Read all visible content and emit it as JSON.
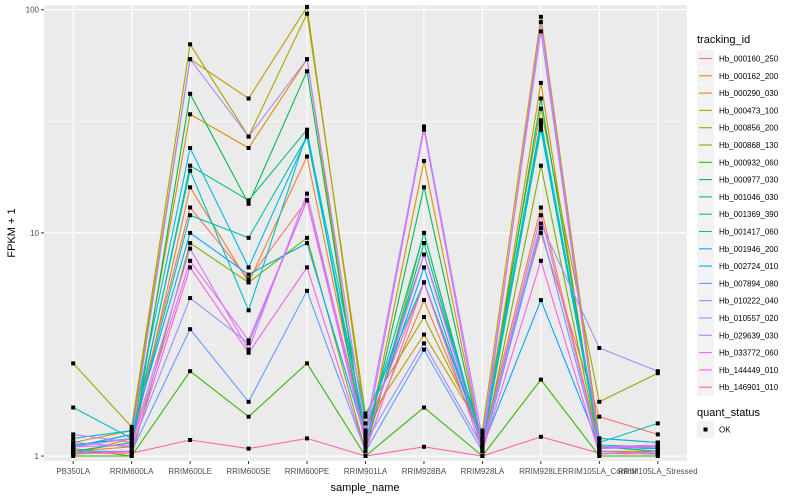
{
  "chart_data": {
    "type": "line",
    "xlabel": "sample_name",
    "ylabel": "FPKM + 1",
    "y_scale": "log10",
    "ylim": [
      0.95,
      105
    ],
    "yticks": [
      1,
      10,
      100
    ],
    "ytick_labels": [
      "1",
      "10",
      "100"
    ],
    "categories": [
      "PB350LA",
      "RRIM600LA",
      "RRIM600LE",
      "RRIM600SE",
      "RRIM600PE",
      "RRIM901LA",
      "RRIM928BA",
      "RRIM928LA",
      "RRIM928LE",
      "RRIM105LA_Control",
      "RRIM105LA_Stressed"
    ],
    "grid": true,
    "legend": {
      "title": "tracking_id",
      "placement": "right"
    },
    "legend2": {
      "title": "quant_status",
      "entries": [
        "OK"
      ]
    },
    "series": [
      {
        "name": "Hb_000160_250",
        "color": "#F8766D",
        "values": [
          1.1,
          1.25,
          13.0,
          6.2,
          14.0,
          1.3,
          6.0,
          1.2,
          10.0,
          1.5,
          1.25
        ]
      },
      {
        "name": "Hb_000162_200",
        "color": "#EA8331",
        "values": [
          1.05,
          1.1,
          16.0,
          6.0,
          22.0,
          1.2,
          5.0,
          1.15,
          13.0,
          1.1,
          1.1
        ]
      },
      {
        "name": "Hb_000290_030",
        "color": "#D89000",
        "values": [
          1.02,
          1.2,
          34.0,
          24.0,
          60.0,
          1.1,
          21.0,
          1.1,
          47.0,
          1.05,
          1.05
        ]
      },
      {
        "name": "Hb_000473_100",
        "color": "#C09B00",
        "values": [
          1.15,
          1.3,
          60.0,
          40.0,
          103.0,
          1.4,
          3.5,
          1.3,
          93.0,
          1.2,
          1.15
        ]
      },
      {
        "name": "Hb_000856_200",
        "color": "#A3A500",
        "values": [
          2.6,
          1.35,
          70.0,
          27.0,
          96.0,
          1.55,
          4.2,
          1.25,
          36.0,
          1.75,
          2.35
        ]
      },
      {
        "name": "Hb_000868_130",
        "color": "#7CAE00",
        "values": [
          1.08,
          1.0,
          9.0,
          6.0,
          9.5,
          1.05,
          10.0,
          1.05,
          20.0,
          1.08,
          1.1
        ]
      },
      {
        "name": "Hb_000932_060",
        "color": "#39B600",
        "values": [
          1.0,
          1.0,
          2.4,
          1.5,
          2.6,
          1.0,
          1.65,
          1.0,
          2.2,
          1.0,
          1.0
        ]
      },
      {
        "name": "Hb_000977_030",
        "color": "#00BB4E",
        "values": [
          1.03,
          1.05,
          42.0,
          13.5,
          53.0,
          1.1,
          16.0,
          1.08,
          40.0,
          1.1,
          1.05
        ]
      },
      {
        "name": "Hb_001046_030",
        "color": "#00BF7D",
        "values": [
          1.05,
          1.15,
          20.0,
          14.0,
          29.0,
          1.1,
          9.0,
          1.1,
          31.0,
          1.1,
          1.08
        ]
      },
      {
        "name": "Hb_001369_390",
        "color": "#00C1A3",
        "values": [
          1.12,
          1.2,
          12.0,
          9.5,
          27.0,
          1.25,
          10.0,
          1.1,
          29.0,
          1.12,
          1.1
        ]
      },
      {
        "name": "Hb_001417_060",
        "color": "#00BFC4",
        "values": [
          1.65,
          1.2,
          19.0,
          4.5,
          28.0,
          1.5,
          6.0,
          1.15,
          32.0,
          1.15,
          1.4
        ]
      },
      {
        "name": "Hb_001946_200",
        "color": "#00B8E7",
        "values": [
          1.2,
          1.3,
          24.0,
          7.0,
          27.0,
          1.3,
          8.0,
          1.2,
          30.0,
          1.2,
          1.15
        ]
      },
      {
        "name": "Hb_002724_010",
        "color": "#00A9FF",
        "values": [
          1.1,
          1.25,
          10.0,
          6.5,
          9.0,
          1.2,
          7.0,
          1.1,
          5.0,
          1.1,
          1.08
        ]
      },
      {
        "name": "Hb_007894_080",
        "color": "#619CFF",
        "values": [
          1.05,
          1.05,
          3.7,
          1.75,
          5.5,
          1.05,
          3.0,
          1.05,
          10.5,
          1.05,
          1.03
        ]
      },
      {
        "name": "Hb_010222_040",
        "color": "#9590FF",
        "values": [
          1.15,
          1.1,
          5.1,
          3.2,
          14.0,
          1.15,
          3.2,
          1.1,
          11.0,
          3.05,
          2.4
        ]
      },
      {
        "name": "Hb_010557_020",
        "color": "#B983FF",
        "values": [
          1.1,
          1.2,
          60.0,
          27.0,
          60.0,
          1.3,
          30.0,
          1.2,
          80.0,
          1.1,
          1.1
        ]
      },
      {
        "name": "Hb_029639_030",
        "color": "#D575FE",
        "values": [
          1.25,
          1.15,
          8.5,
          3.0,
          15.0,
          1.2,
          29.0,
          1.1,
          88.0,
          1.1,
          1.12
        ]
      },
      {
        "name": "Hb_033772_060",
        "color": "#E76BF3",
        "values": [
          1.1,
          1.12,
          7.5,
          3.3,
          14.0,
          1.15,
          8.0,
          1.1,
          12.0,
          1.08,
          1.1
        ]
      },
      {
        "name": "Hb_144449_010",
        "color": "#F564E3",
        "values": [
          1.02,
          1.05,
          7.0,
          2.9,
          7.0,
          1.05,
          6.0,
          1.05,
          7.5,
          1.02,
          1.05
        ]
      },
      {
        "name": "Hb_146901_010",
        "color": "#FF64B0",
        "values": [
          1.03,
          1.03,
          1.18,
          1.08,
          1.2,
          1.0,
          1.1,
          1.0,
          1.22,
          1.03,
          1.02
        ]
      }
    ]
  }
}
